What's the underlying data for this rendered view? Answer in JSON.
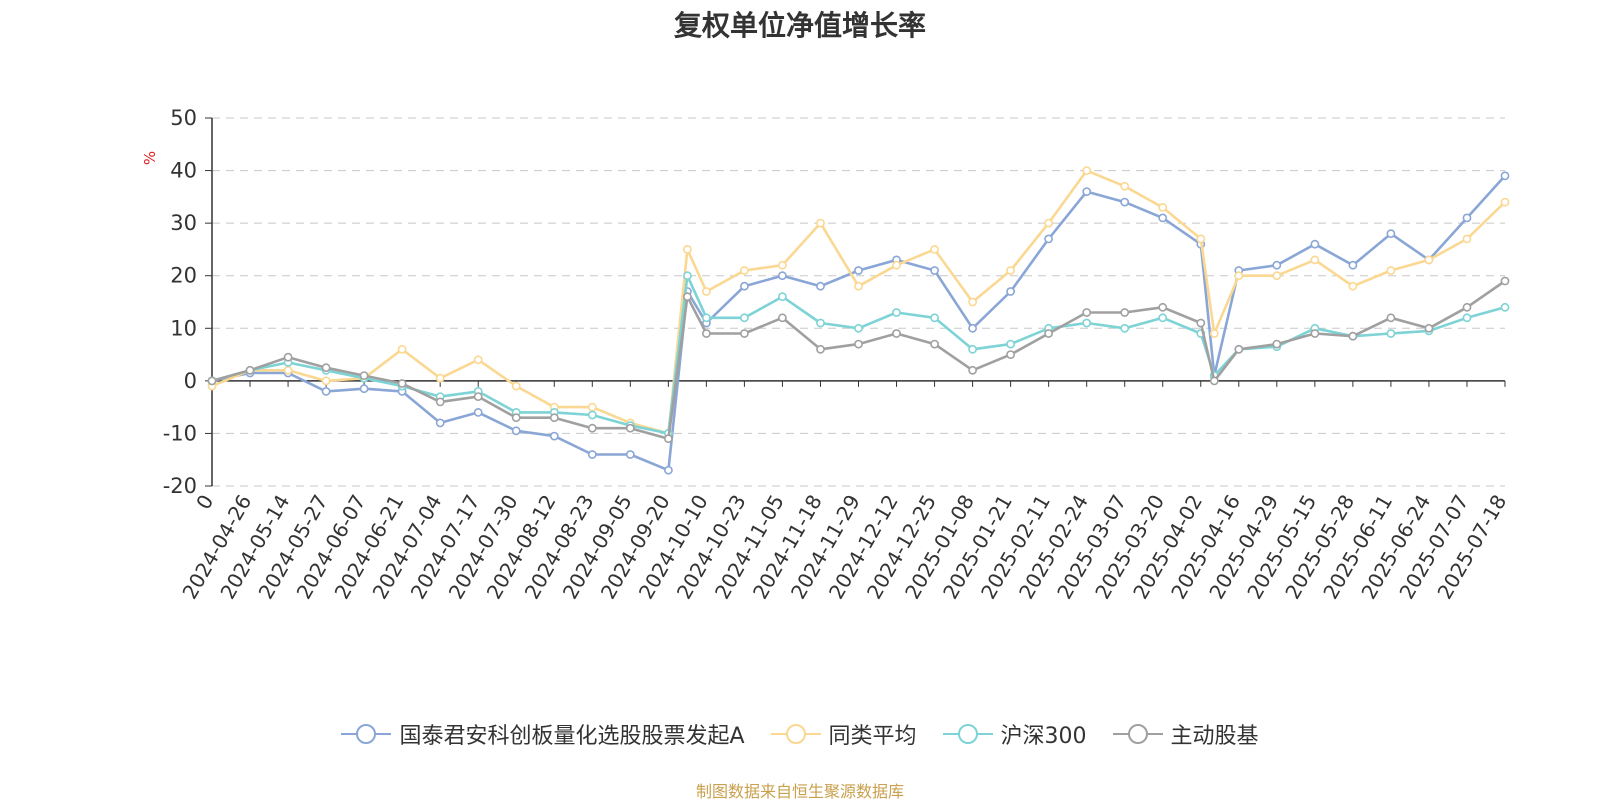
{
  "chart_data": {
    "type": "line",
    "title": "复权单位净值增长率",
    "ylabel": "%",
    "ylim": [
      -20,
      50
    ],
    "yticks": [
      50,
      40,
      30,
      20,
      10,
      0,
      -10,
      -20
    ],
    "xtick_labels": [
      "0",
      "2024-04-26",
      "2024-05-14",
      "2024-05-27",
      "2024-06-07",
      "2024-06-21",
      "2024-07-04",
      "2024-07-17",
      "2024-07-30",
      "2024-08-12",
      "2024-08-23",
      "2024-09-05",
      "2024-09-20",
      "2024-10-10",
      "2024-10-23",
      "2024-11-05",
      "2024-11-18",
      "2024-11-29",
      "2024-12-12",
      "2024-12-25",
      "2025-01-08",
      "2025-01-21",
      "2025-02-11",
      "2025-02-24",
      "2025-03-07",
      "2025-03-20",
      "2025-04-02",
      "2025-04-16",
      "2025-04-29",
      "2025-05-15",
      "2025-05-28",
      "2025-06-11",
      "2025-06-24",
      "2025-07-07",
      "2025-07-18"
    ],
    "x_points": [
      "2024-04-17",
      "2024-04-26",
      "2024-05-14",
      "2024-05-27",
      "2024-06-07",
      "2024-06-21",
      "2024-07-04",
      "2024-07-17",
      "2024-07-30",
      "2024-08-12",
      "2024-08-23",
      "2024-09-05",
      "2024-09-20",
      "2024-09-30",
      "2024-10-10",
      "2024-10-23",
      "2024-11-05",
      "2024-11-18",
      "2024-11-29",
      "2024-12-12",
      "2024-12-25",
      "2025-01-08",
      "2025-01-21",
      "2025-02-11",
      "2025-02-24",
      "2025-03-07",
      "2025-03-20",
      "2025-04-02",
      "2025-04-07",
      "2025-04-16",
      "2025-04-29",
      "2025-05-15",
      "2025-05-28",
      "2025-06-11",
      "2025-06-24",
      "2025-07-07",
      "2025-07-18"
    ],
    "grid": "horizontal-dashed",
    "legend_position": "bottom",
    "series": [
      {
        "name": "国泰君安科创板量化选股股票发起A",
        "color": "#8aa6d6",
        "values": [
          0,
          1.5,
          1.5,
          -2,
          -1.5,
          -2,
          -8,
          -6,
          -9.5,
          -10.5,
          -14,
          -14,
          -17,
          17,
          11,
          18,
          20,
          18,
          21,
          23,
          21,
          10,
          17,
          27,
          36,
          34,
          31,
          26,
          1,
          21,
          22,
          26,
          22,
          28,
          23,
          31,
          39
        ]
      },
      {
        "name": "同类平均",
        "color": "#fbd892",
        "values": [
          -1,
          2,
          2,
          0,
          0.5,
          6,
          0.5,
          4,
          -1,
          -5,
          -5,
          -8,
          -10,
          25,
          17,
          21,
          22,
          30,
          18,
          22,
          25,
          15,
          21,
          30,
          40,
          37,
          33,
          27,
          9,
          20,
          20,
          23,
          18,
          21,
          23,
          27,
          34
        ]
      },
      {
        "name": "沪深300",
        "color": "#7dd3d5",
        "values": [
          0,
          2,
          3.5,
          2,
          0.5,
          -1,
          -3,
          -2,
          -6,
          -6,
          -6.5,
          -8.5,
          -10,
          20,
          12,
          12,
          16,
          11,
          10,
          13,
          12,
          6,
          7,
          10,
          11,
          10,
          12,
          9,
          1,
          6,
          6.5,
          10,
          8.5,
          9,
          9.5,
          12,
          14
        ]
      },
      {
        "name": "主动股基",
        "color": "#a0a0a0",
        "values": [
          0,
          2,
          4.5,
          2.5,
          1,
          -0.5,
          -4,
          -3,
          -7,
          -7,
          -9,
          -9,
          -11,
          16,
          9,
          9,
          12,
          6,
          7,
          9,
          7,
          2,
          5,
          9,
          13,
          13,
          14,
          11,
          0,
          6,
          7,
          9,
          8.5,
          12,
          10,
          14,
          19
        ]
      }
    ]
  },
  "legend_items": [
    {
      "label": "国泰君安科创板量化选股股票发起A",
      "color": "#8aa6d6"
    },
    {
      "label": "同类平均",
      "color": "#fbd892"
    },
    {
      "label": "沪深300",
      "color": "#7dd3d5"
    },
    {
      "label": "主动股基",
      "color": "#a0a0a0"
    }
  ],
  "source_text": "制图数据来自恒生聚源数据库"
}
